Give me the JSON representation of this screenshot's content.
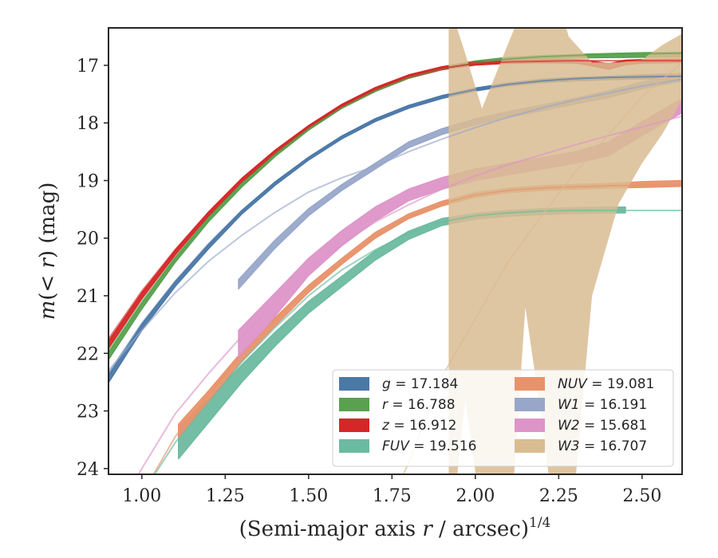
{
  "chart_data": {
    "type": "line",
    "xlabel": "(Semi-major axis r / arcsec)",
    "xlabel_exp": "1/4",
    "ylabel": "m(< r) (mag)",
    "xlim": [
      0.9,
      2.62
    ],
    "ylim": [
      24.1,
      16.35
    ],
    "y_inverted": true,
    "grid": false,
    "legend_position": "lower-right",
    "xticks": [
      "1.00",
      "1.25",
      "1.50",
      "1.75",
      "2.00",
      "2.25",
      "2.50"
    ],
    "xtick_values": [
      1.0,
      1.25,
      1.5,
      1.75,
      2.0,
      2.25,
      2.5
    ],
    "yticks": [
      "17",
      "18",
      "19",
      "20",
      "21",
      "22",
      "23",
      "24"
    ],
    "ytick_values": [
      17,
      18,
      19,
      20,
      21,
      22,
      23,
      24
    ],
    "series": [
      {
        "name": "g",
        "legend_value": "17.184",
        "color": "#4c78a8",
        "band_x": [
          0.9,
          1.0,
          1.1,
          1.2,
          1.3,
          1.4,
          1.5,
          1.6,
          1.7,
          1.8,
          1.9,
          2.0,
          2.1,
          2.2,
          2.3,
          2.4,
          2.5,
          2.62
        ],
        "band_mid": [
          22.45,
          21.55,
          20.8,
          20.15,
          19.55,
          19.05,
          18.62,
          18.25,
          17.95,
          17.72,
          17.55,
          17.42,
          17.33,
          17.27,
          17.24,
          17.22,
          17.2,
          17.19
        ],
        "band_half": [
          0.06,
          0.05,
          0.04,
          0.035,
          0.03,
          0.03,
          0.025,
          0.025,
          0.025,
          0.025,
          0.025,
          0.025,
          0.025,
          0.03,
          0.03,
          0.03,
          0.035,
          0.04
        ],
        "model_x": [
          0.9,
          1.0,
          1.1,
          1.2,
          1.3,
          1.4,
          1.5,
          1.6,
          1.7,
          1.8,
          1.9,
          2.0,
          2.1,
          2.2,
          2.3,
          2.4,
          2.5,
          2.62
        ],
        "model_y": [
          22.35,
          21.48,
          20.75,
          20.1,
          19.52,
          19.03,
          18.6,
          18.23,
          17.94,
          17.71,
          17.54,
          17.42,
          17.33,
          17.27,
          17.23,
          17.21,
          17.2,
          17.19
        ]
      },
      {
        "name": "r",
        "legend_value": "16.788",
        "color": "#59a14f",
        "band_x": [
          0.9,
          1.0,
          1.1,
          1.2,
          1.3,
          1.4,
          1.5,
          1.6,
          1.7,
          1.8,
          1.9,
          2.0,
          2.1,
          2.2,
          2.3,
          2.4,
          2.5,
          2.62
        ],
        "band_mid": [
          22.05,
          21.18,
          20.38,
          19.68,
          19.08,
          18.55,
          18.1,
          17.72,
          17.43,
          17.2,
          17.05,
          16.95,
          16.89,
          16.86,
          16.84,
          16.83,
          16.82,
          16.81
        ],
        "band_half": [
          0.06,
          0.05,
          0.04,
          0.035,
          0.03,
          0.03,
          0.025,
          0.025,
          0.025,
          0.025,
          0.025,
          0.025,
          0.03,
          0.03,
          0.03,
          0.035,
          0.04,
          0.04
        ],
        "model_x": [
          0.9,
          1.0,
          1.1,
          1.2,
          1.3,
          1.4,
          1.5,
          1.6,
          1.7,
          1.8,
          1.9,
          2.0,
          2.1,
          2.2,
          2.3,
          2.4,
          2.5,
          2.62
        ],
        "model_y": [
          21.95,
          21.1,
          20.33,
          19.65,
          19.06,
          18.54,
          18.1,
          17.73,
          17.44,
          17.21,
          17.06,
          16.96,
          16.89,
          16.85,
          16.83,
          16.81,
          16.8,
          16.79
        ]
      },
      {
        "name": "z",
        "legend_value": "16.912",
        "color": "#d62728",
        "band_x": [
          0.9,
          1.0,
          1.1,
          1.2,
          1.3,
          1.4,
          1.5,
          1.6,
          1.7,
          1.8,
          1.9,
          2.0,
          2.1,
          2.2,
          2.3,
          2.35,
          2.4,
          2.45,
          2.5,
          2.62
        ],
        "band_mid": [
          21.85,
          21.0,
          20.25,
          19.58,
          18.99,
          18.5,
          18.07,
          17.7,
          17.41,
          17.19,
          17.05,
          16.97,
          16.94,
          16.93,
          16.93,
          16.97,
          17.02,
          16.95,
          16.93,
          16.92
        ],
        "band_half": [
          0.06,
          0.05,
          0.04,
          0.035,
          0.03,
          0.03,
          0.025,
          0.025,
          0.025,
          0.025,
          0.025,
          0.025,
          0.025,
          0.025,
          0.03,
          0.04,
          0.05,
          0.04,
          0.03,
          0.03
        ],
        "model_x": [
          0.9,
          1.0,
          1.1,
          1.2,
          1.3,
          1.4,
          1.5,
          1.6,
          1.7,
          1.8,
          1.9,
          2.0,
          2.1,
          2.2,
          2.3,
          2.4,
          2.5,
          2.62
        ],
        "model_y": [
          21.75,
          20.92,
          20.2,
          19.55,
          18.97,
          18.48,
          18.06,
          17.7,
          17.41,
          17.19,
          17.05,
          16.97,
          16.94,
          16.93,
          16.92,
          16.92,
          16.92,
          16.92
        ]
      },
      {
        "name": "FUV",
        "legend_value": "19.516",
        "color": "#6cbba0",
        "band_x": [
          1.11,
          1.2,
          1.3,
          1.4,
          1.5,
          1.6,
          1.7,
          1.8,
          1.9,
          2.0,
          2.1,
          2.2,
          2.3,
          2.45
        ],
        "band_mid": [
          23.55,
          23.0,
          22.35,
          21.75,
          21.2,
          20.75,
          20.3,
          19.95,
          19.72,
          19.62,
          19.57,
          19.54,
          19.52,
          19.51
        ],
        "band_half": [
          0.28,
          0.2,
          0.15,
          0.12,
          0.1,
          0.09,
          0.08,
          0.07,
          0.06,
          0.05,
          0.05,
          0.05,
          0.05,
          0.05
        ],
        "model_x": [
          0.95,
          1.0,
          1.1,
          1.2,
          1.3,
          1.4,
          1.5,
          1.6,
          1.7,
          1.8,
          1.9,
          2.0,
          2.1,
          2.2,
          2.3,
          2.4,
          2.5,
          2.62
        ],
        "model_y": [
          25.2,
          24.45,
          23.55,
          22.85,
          22.15,
          21.55,
          21.0,
          20.55,
          20.2,
          19.92,
          19.72,
          19.61,
          19.56,
          19.53,
          19.52,
          19.52,
          19.52,
          19.52
        ]
      },
      {
        "name": "NUV",
        "legend_value": "19.081",
        "color": "#e8936b",
        "band_x": [
          1.11,
          1.2,
          1.3,
          1.4,
          1.5,
          1.6,
          1.7,
          1.8,
          1.9,
          2.0,
          2.1,
          2.2,
          2.3,
          2.4,
          2.5,
          2.62
        ],
        "band_mid": [
          23.35,
          22.75,
          22.05,
          21.45,
          20.88,
          20.4,
          19.95,
          19.62,
          19.4,
          19.25,
          19.17,
          19.13,
          19.11,
          19.09,
          19.07,
          19.05
        ],
        "band_half": [
          0.12,
          0.1,
          0.08,
          0.07,
          0.06,
          0.05,
          0.05,
          0.04,
          0.04,
          0.04,
          0.04,
          0.04,
          0.04,
          0.04,
          0.05,
          0.05
        ],
        "model_x": [
          0.9,
          1.0,
          1.1,
          1.2,
          1.3,
          1.4,
          1.5,
          1.6,
          1.7,
          1.8,
          1.9,
          2.0,
          2.1,
          2.2,
          2.3,
          2.4,
          2.5,
          2.62
        ],
        "model_y": [
          25.5,
          24.45,
          23.45,
          22.72,
          22.02,
          21.42,
          20.87,
          20.4,
          19.96,
          19.63,
          19.4,
          19.25,
          19.17,
          19.13,
          19.11,
          19.09,
          19.08,
          19.07
        ]
      },
      {
        "name": "W1",
        "legend_value": "16.191",
        "color": "#98a7c9",
        "band_x": [
          1.29,
          1.4,
          1.5,
          1.6,
          1.7,
          1.8,
          1.9,
          2.0,
          2.1,
          2.2,
          2.3,
          2.4,
          2.5,
          2.62
        ],
        "band_mid": [
          20.8,
          20.1,
          19.55,
          19.12,
          18.75,
          18.38,
          18.15,
          17.98,
          17.85,
          17.74,
          17.62,
          17.5,
          17.35,
          17.2
        ],
        "band_half": [
          0.08,
          0.07,
          0.06,
          0.05,
          0.05,
          0.05,
          0.05,
          0.05,
          0.05,
          0.05,
          0.05,
          0.06,
          0.06,
          0.07
        ],
        "model_x": [
          0.9,
          1.0,
          1.1,
          1.2,
          1.3,
          1.4,
          1.5,
          1.6,
          1.7,
          1.8,
          1.9,
          2.0,
          2.1,
          2.2,
          2.3,
          2.4,
          2.5,
          2.62
        ],
        "model_y": [
          22.3,
          21.6,
          20.95,
          20.4,
          19.95,
          19.55,
          19.2,
          18.95,
          18.75,
          18.5,
          18.28,
          18.08,
          17.9,
          17.74,
          17.6,
          17.48,
          17.36,
          17.24
        ]
      },
      {
        "name": "W2",
        "legend_value": "15.681",
        "color": "#dd95c8",
        "band_x": [
          1.29,
          1.4,
          1.5,
          1.6,
          1.7,
          1.8,
          1.9,
          2.0,
          2.1,
          2.2,
          2.3,
          2.4,
          2.5,
          2.62
        ],
        "band_mid": [
          21.85,
          21.15,
          20.5,
          20.0,
          19.58,
          19.25,
          19.05,
          18.9,
          18.8,
          18.7,
          18.6,
          18.45,
          18.1,
          17.7
        ],
        "band_half": [
          0.25,
          0.2,
          0.15,
          0.13,
          0.12,
          0.1,
          0.1,
          0.1,
          0.1,
          0.1,
          0.1,
          0.12,
          0.12,
          0.12
        ],
        "model_x": [
          0.9,
          1.0,
          1.1,
          1.2,
          1.3,
          1.4,
          1.5,
          1.6,
          1.7,
          1.8,
          1.9,
          2.0,
          2.1,
          2.2,
          2.3,
          2.4,
          2.5,
          2.62
        ],
        "model_y": [
          25.0,
          24.0,
          23.05,
          22.35,
          21.7,
          21.1,
          20.55,
          20.1,
          19.72,
          19.42,
          19.15,
          18.92,
          18.72,
          18.55,
          18.38,
          18.22,
          18.07,
          17.88
        ]
      },
      {
        "name": "W3",
        "legend_value": "16.707",
        "color": "#d9bc92",
        "band_x": [
          1.92,
          1.97,
          2.02,
          2.1,
          2.15,
          2.2,
          2.25,
          2.28,
          2.35,
          2.43,
          2.5,
          2.56,
          2.62
        ],
        "band_upper": [
          15.9,
          16.8,
          17.75,
          16.6,
          15.9,
          15.9,
          15.9,
          16.5,
          16.95,
          16.95,
          16.9,
          16.65,
          16.45
        ],
        "band_lower": [
          25.5,
          22.8,
          24.9,
          25.5,
          21.2,
          23.2,
          25.5,
          25.5,
          21.0,
          19.4,
          18.7,
          18.2,
          17.6
        ],
        "model_x": [
          1.65,
          1.8,
          1.9,
          2.0,
          2.1,
          2.2,
          2.3,
          2.4,
          2.5,
          2.62
        ],
        "model_y": [
          25.8,
          23.9,
          22.4,
          21.4,
          20.4,
          19.6,
          18.85,
          18.2,
          17.55,
          16.95
        ]
      }
    ]
  }
}
